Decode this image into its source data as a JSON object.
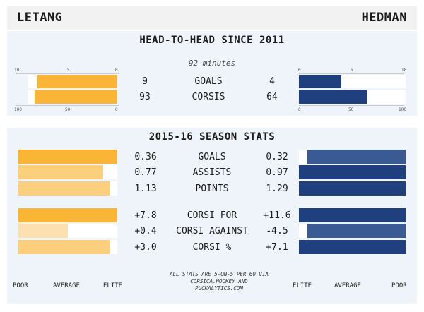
{
  "players": {
    "left": "LETANG",
    "right": "HEDMAN"
  },
  "colors": {
    "left": "#fbb536",
    "left_light": "#fccf7e",
    "left_pale": "#fde0b0",
    "right": "#1f3f7f",
    "right_mid": "#3a5a93"
  },
  "head_to_head": {
    "title": "HEAD-TO-HEAD SINCE 2011",
    "subtitle": "92 minutes",
    "top_ticks": [
      "10",
      "5",
      "0"
    ],
    "top_ticks_right": [
      "0",
      "5",
      "10"
    ],
    "bottom_ticks": [
      "100",
      "50",
      "0"
    ],
    "bottom_ticks_right": [
      "0",
      "50",
      "100"
    ]
  },
  "season": {
    "title": "2015-16 SEASON STATS",
    "scale_left": [
      "POOR",
      "AVERAGE",
      "ELITE"
    ],
    "scale_right": [
      "ELITE",
      "AVERAGE",
      "POOR"
    ],
    "note": "ALL STATS ARE 5-ON-5 PER 60 VIA CORSICA.HOCKEY AND PUCKALYTICS.COM"
  },
  "chart_data": [
    {
      "type": "bar",
      "title": "HEAD-TO-HEAD SINCE 2011",
      "categories": [
        "GOALS",
        "CORSIS"
      ],
      "series": [
        {
          "name": "LETANG",
          "values": [
            9,
            93
          ],
          "labels": [
            "9",
            "93"
          ]
        },
        {
          "name": "HEDMAN",
          "values": [
            4,
            64
          ],
          "labels": [
            "4",
            "64"
          ]
        }
      ],
      "scales": [
        [
          0,
          10
        ],
        [
          0,
          100
        ]
      ]
    },
    {
      "type": "bar",
      "title": "2015-16 SEASON STATS",
      "categories": [
        "GOALS",
        "ASSISTS",
        "POINTS",
        "CORSI FOR",
        "CORSI AGAINST",
        "CORSI %"
      ],
      "series": [
        {
          "name": "LETANG",
          "values": [
            0.36,
            0.77,
            1.13,
            7.8,
            0.4,
            3.0
          ],
          "labels": [
            "0.36",
            "0.77",
            "1.13",
            "+7.8",
            "+0.4",
            "+3.0"
          ],
          "fill": [
            1.0,
            0.86,
            0.93,
            1.0,
            0.5,
            0.93
          ]
        },
        {
          "name": "HEDMAN",
          "values": [
            0.32,
            0.97,
            1.29,
            11.6,
            -4.5,
            7.1
          ],
          "labels": [
            "0.32",
            "0.97",
            "1.29",
            "+11.6",
            "-4.5",
            "+7.1"
          ],
          "fill": [
            0.92,
            1.0,
            1.0,
            1.0,
            0.92,
            1.0
          ]
        }
      ]
    }
  ]
}
